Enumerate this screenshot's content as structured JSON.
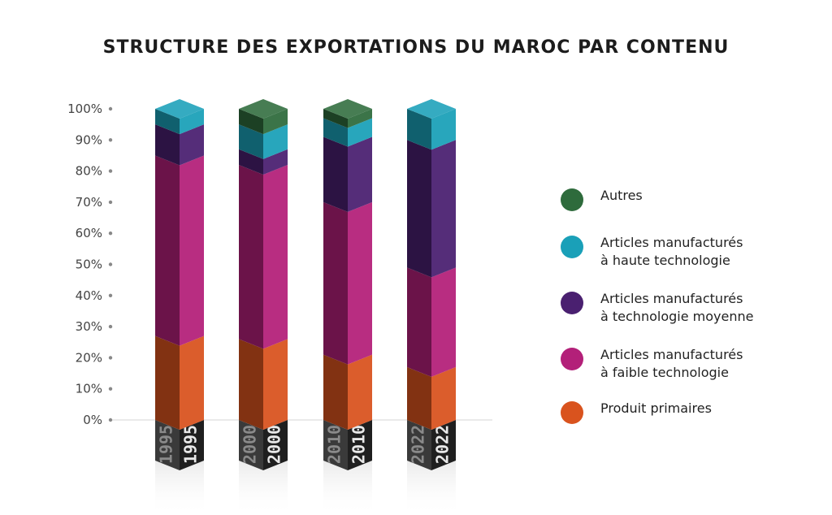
{
  "chart_data": {
    "type": "bar",
    "title": "STRUCTURE DES EXPORTATIONS DU MAROC PAR CONTENU",
    "categories": [
      "1995",
      "2000",
      "2010",
      "2022"
    ],
    "y_tick_labels": [
      "0%",
      "10%",
      "20%",
      "30%",
      "40%",
      "50%",
      "60%",
      "70%",
      "80%",
      "90%",
      "100%"
    ],
    "ylim": [
      0,
      100
    ],
    "stacked": true,
    "legend_position": "right",
    "series": [
      {
        "name": "Produit primaires",
        "values": [
          27,
          26,
          21,
          17
        ]
      },
      {
        "name": "Articles manufacturés\nà faible technologie",
        "values": [
          58,
          56,
          49,
          32
        ]
      },
      {
        "name": "Articles manufacturés\nà technologie moyenne",
        "values": [
          10,
          5,
          21,
          41
        ]
      },
      {
        "name": "Articles manufacturés\nà haute technologie",
        "values": [
          5,
          8,
          6,
          10
        ]
      },
      {
        "name": "Autres",
        "values": [
          0,
          5,
          3,
          0
        ]
      }
    ],
    "colors": {
      "Produit primaires": "#d9531e",
      "Articles manufacturés\nà faible technologie": "#b32079",
      "Articles manufacturés\nà technologie moyenne": "#4a2070",
      "Articles manufacturés\nà haute technologie": "#1aa0b8",
      "Autres": "#2e6b3c"
    },
    "legend_order": [
      "Autres",
      "Articles manufacturés\nà haute technologie",
      "Articles manufacturés\nà technologie moyenne",
      "Articles manufacturés\nà faible technologie",
      "Produit primaires"
    ]
  }
}
